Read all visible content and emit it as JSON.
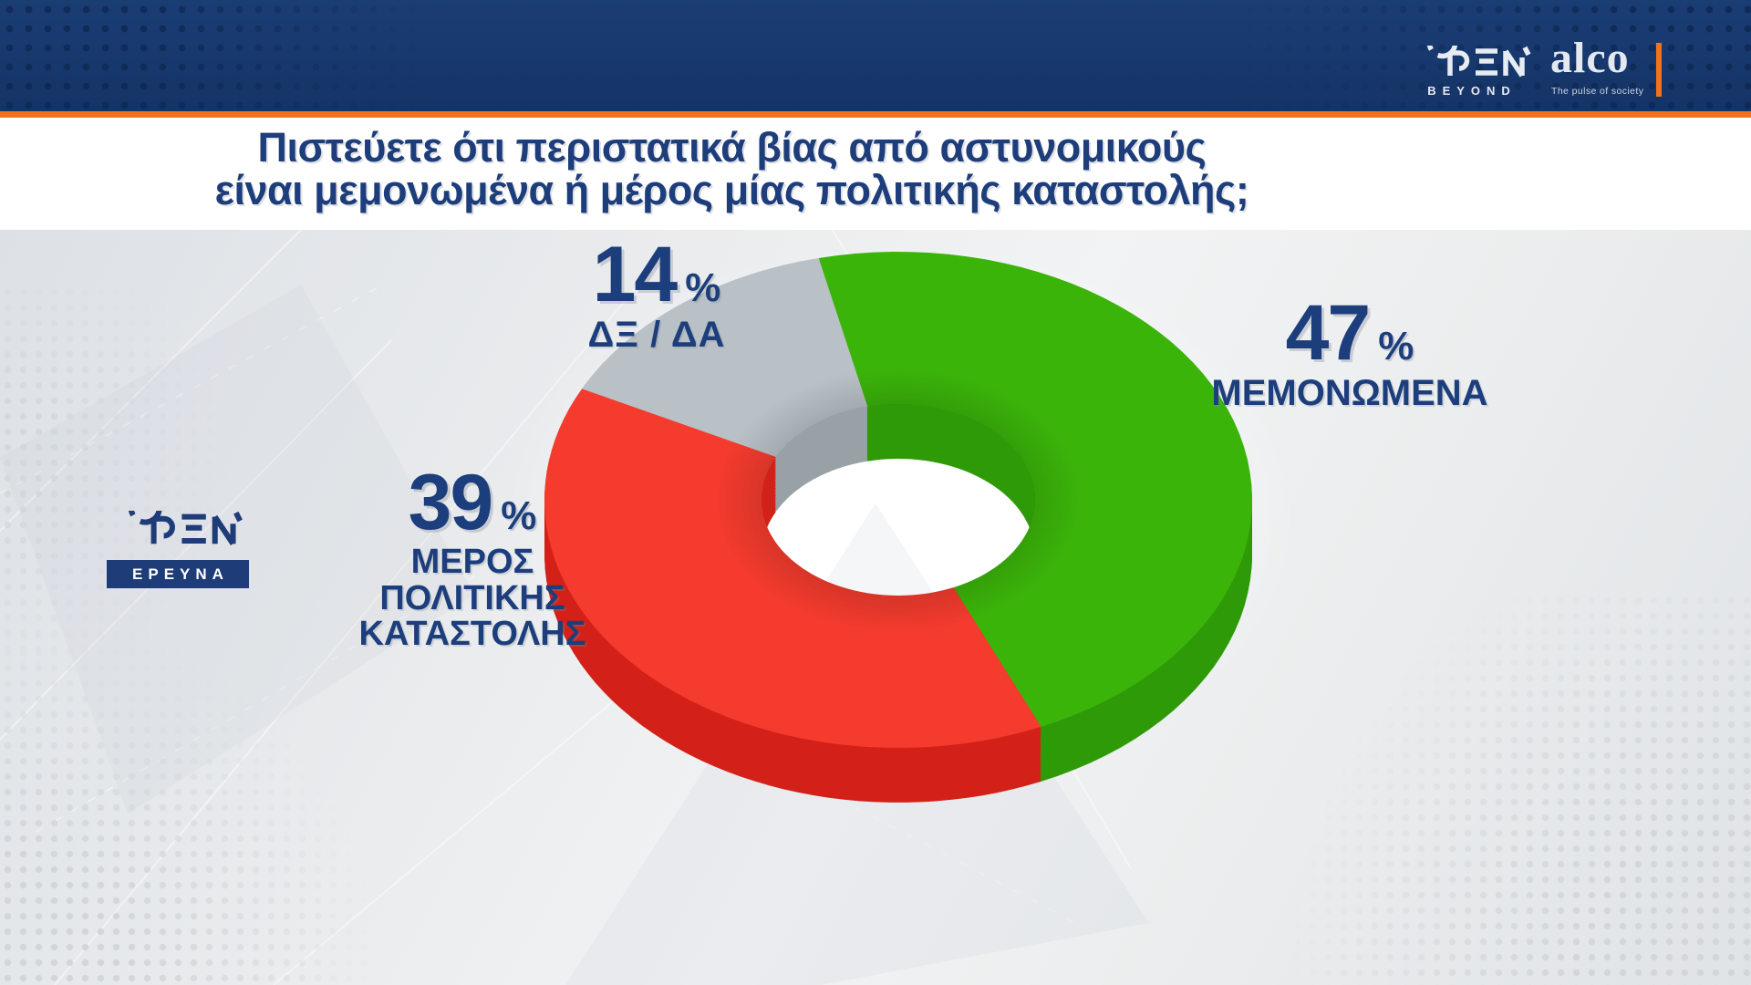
{
  "header": {
    "open_logo_subtext": "BEYOND",
    "alco_name": "alco",
    "alco_tagline": "The pulse of society"
  },
  "question": {
    "line1": "Πιστεύετε ότι περιστατικά βίας από αστυνομικούς",
    "line2": "είναι μεμονωμένα ή μέρος μίας πολιτικής καταστολής;"
  },
  "watermark": {
    "label": "ΕΡΕΥΝΑ"
  },
  "colors": {
    "header_bar": "#17386d",
    "accent_orange": "#f1731f",
    "title_text": "#1e3d7b",
    "label_text": "#1d3e7c",
    "area_background": "#e9ebed"
  },
  "chart_data": {
    "type": "pie",
    "style": "3d-donut",
    "title": "Πιστεύετε ότι περιστατικά βίας από αστυνομικούς είναι μεμονωμένα ή μέρος μίας πολιτικής καταστολής;",
    "unit": "%",
    "start_angle_deg": 103,
    "direction": "clockwise",
    "legend_position": "around",
    "segments": [
      {
        "label": "ΜΕΜΟΝΩΜΕΝΑ",
        "value": 47,
        "unit": "%",
        "color": "#3bb40a",
        "side_color": "#2f9a08"
      },
      {
        "label": "ΜΕΡΟΣ ΠΟΛΙΤΙΚΗΣ ΚΑΤΑΣΤΟΛΗΣ",
        "value": 39,
        "unit": "%",
        "color": "#f43b2e",
        "side_color": "#d32119"
      },
      {
        "label": "ΔΞ / ΔΑ",
        "value": 14,
        "unit": "%",
        "color": "#b9c1c6",
        "side_color": "#98a2a6"
      }
    ]
  }
}
